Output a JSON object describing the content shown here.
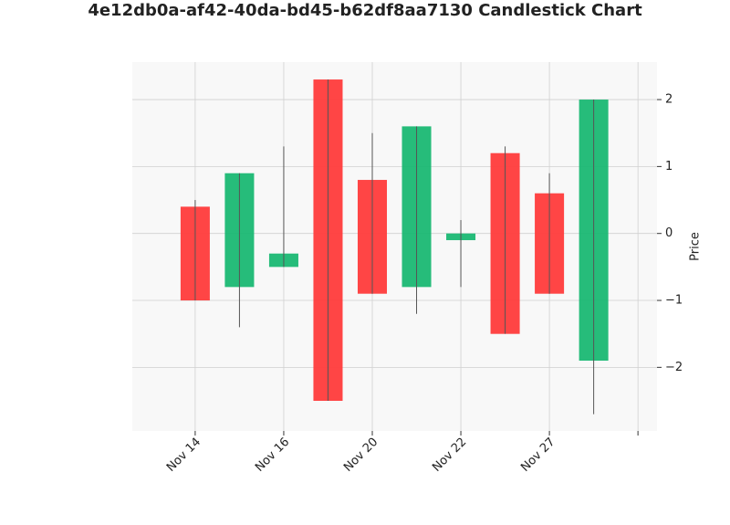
{
  "chart_data": {
    "type": "candlestick",
    "title": "4e12db0a-af42-40da-bd45-b62df8aa7130 Candlestick Chart",
    "y_label": "Price",
    "categories": [
      "Nov 14",
      null,
      "Nov 16",
      null,
      "Nov 20",
      null,
      "Nov 22",
      null,
      "Nov 27",
      null
    ],
    "open": [
      0.4,
      -0.8,
      -0.5,
      2.3,
      0.8,
      -0.8,
      -0.1,
      1.2,
      0.6,
      -1.9
    ],
    "high": [
      0.5,
      0.9,
      1.3,
      2.3,
      1.5,
      1.6,
      0.2,
      1.3,
      0.9,
      2.0
    ],
    "low": [
      -1.0,
      -1.4,
      -0.5,
      -2.5,
      -0.9,
      -1.2,
      -0.8,
      -1.5,
      -0.9,
      -2.7
    ],
    "close": [
      -1.0,
      0.9,
      -0.3,
      -2.5,
      -0.9,
      1.6,
      0.0,
      -1.5,
      -0.9,
      2.0
    ],
    "up_color": "#1ab873",
    "down_color": "#ff3b3b",
    "xlim": [
      -1.42,
      10.43
    ],
    "xticks": [
      0,
      2,
      4,
      6,
      8,
      10
    ],
    "ylim": [
      -2.95,
      2.56
    ],
    "yticks": [
      {
        "value": -2,
        "label": "−2"
      },
      {
        "value": -1,
        "label": "−1"
      },
      0,
      1,
      2
    ],
    "grid": true
  }
}
